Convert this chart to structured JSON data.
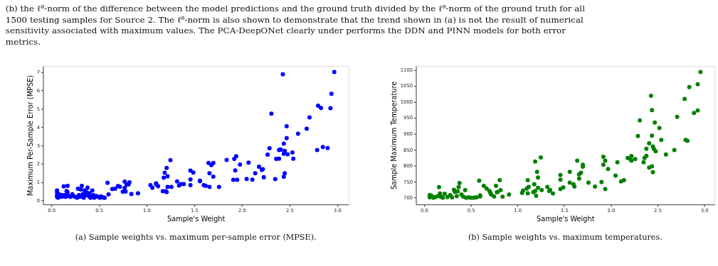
{
  "chart_data": [
    {
      "type": "scatter",
      "xlabel": "Sample's Weight",
      "ylabel": "Maximum Per-Sample Error (MPSE)",
      "annotations": [
        "(b) the ℓ⁸-norm of the difference between the model predictions and the ground truth divided by the ℓ⁸-norm of the ground truth for all",
        "1500 testing samples for Source 2. The ℓ⁸-norm is also shown to demonstrate that the trend shown in (a) is not the result of numerical",
        "sensitivity associated with maximum values. The PCA-DeepONet clearly under performs the DDN and PINN models for both error",
        "metrics.",
        "(a) Sample weights vs. maximum per-sample error (MPSE)."
      ],
      "x": [
        0.06,
        0.06,
        0.06,
        0.06,
        0.07,
        0.08,
        0.1,
        0.11,
        0.12,
        0.13,
        0.14,
        0.15,
        0.16,
        0.17,
        0.17,
        0.18,
        0.2,
        0.22,
        0.23,
        0.25,
        0.27,
        0.28,
        0.29,
        0.3,
        0.31,
        0.32,
        0.33,
        0.34,
        0.35,
        0.36,
        0.37,
        0.38,
        0.39,
        0.4,
        0.41,
        0.42,
        0.43,
        0.44,
        0.45,
        0.47,
        0.49,
        0.51,
        0.52,
        0.53,
        0.55,
        0.56,
        0.59,
        0.6,
        0.64,
        0.67,
        0.7,
        0.72,
        0.75,
        0.77,
        0.77,
        0.78,
        0.79,
        0.81,
        0.82,
        0.84,
        0.91,
        1.04,
        1.06,
        1.1,
        1.1,
        1.12,
        1.17,
        1.18,
        1.19,
        1.2,
        1.21,
        1.21,
        1.22,
        1.22,
        1.25,
        1.26,
        1.32,
        1.34,
        1.36,
        1.39,
        1.46,
        1.46,
        1.46,
        1.49,
        1.56,
        1.56,
        1.6,
        1.62,
        1.65,
        1.66,
        1.66,
        1.68,
        1.7,
        1.7,
        1.76,
        1.84,
        1.91,
        1.92,
        1.93,
        1.94,
        1.95,
        1.98,
        2.05,
        2.07,
        2.11,
        2.14,
        2.18,
        2.21,
        2.22,
        2.23,
        2.27,
        2.29,
        2.31,
        2.35,
        2.36,
        2.39,
        2.39,
        2.4,
        2.41,
        2.43,
        2.44,
        2.44,
        2.44,
        2.45,
        2.45,
        2.47,
        2.47,
        2.48,
        2.53,
        2.54,
        2.59,
        2.68,
        2.71,
        2.79,
        2.8,
        2.83,
        2.85,
        2.9,
        2.93,
        2.94,
        2.97
      ],
      "series": [
        {
          "color": "#0000ff",
          "values": [
            0.55,
            0.45,
            0.3,
            0.2,
            0.15,
            0.35,
            0.2,
            0.3,
            0.22,
            0.77,
            0.3,
            0.2,
            0.52,
            0.8,
            0.45,
            0.25,
            0.2,
            0.35,
            0.25,
            0.2,
            0.15,
            0.65,
            0.3,
            0.2,
            0.6,
            0.8,
            0.35,
            0.15,
            0.55,
            0.3,
            0.45,
            0.7,
            0.25,
            0.4,
            0.15,
            0.2,
            0.55,
            0.3,
            0.15,
            0.25,
            0.2,
            0.15,
            0.22,
            0.2,
            0.15,
            0.15,
            0.97,
            0.34,
            0.63,
            0.65,
            0.79,
            0.75,
            0.48,
            1.03,
            0.69,
            0.49,
            0.87,
            0.88,
            0.99,
            0.36,
            0.4,
            0.84,
            0.7,
            0.89,
            0.94,
            0.78,
            0.51,
            1.25,
            1.52,
            0.51,
            0.46,
            1.78,
            0.74,
            1.32,
            2.2,
            0.74,
            1.04,
            0.82,
            0.9,
            0.9,
            1.63,
            1.15,
            0.84,
            1.53,
            1.05,
            1.08,
            0.84,
            0.8,
            2.05,
            1.49,
            0.74,
            1.93,
            2.05,
            1.3,
            0.74,
            2.21,
            1.13,
            2.27,
            1.64,
            2.41,
            1.13,
            1.96,
            1.18,
            2.07,
            1.14,
            1.49,
            1.84,
            1.67,
            1.71,
            1.27,
            2.5,
            2.85,
            4.73,
            1.17,
            2.27,
            2.28,
            2.75,
            2.77,
            2.77,
            6.88,
            3.1,
            2.55,
            1.29,
            1.49,
            2.7,
            3.4,
            4.05,
            2.52,
            2.62,
            2.28,
            3.64,
            3.91,
            4.53,
            2.75,
            5.17,
            5.04,
            2.92,
            2.86,
            5.03,
            5.81,
            7.0
          ]
        }
      ],
      "xlim": [
        -0.087,
        3.12
      ],
      "xticks": [
        {
          "value": 0,
          "label": "0.0"
        },
        0.5,
        {
          "value": 1,
          "label": "1.0"
        },
        1.5,
        {
          "value": 2,
          "label": "2.0"
        },
        2.5,
        {
          "value": 3,
          "label": "3.0"
        }
      ],
      "ylim": [
        -0.21,
        7.33
      ],
      "yticks": [
        0,
        1,
        2,
        3,
        4,
        5,
        6,
        7
      ],
      "grid": false,
      "legend": false,
      "marker": "circle"
    },
    {
      "type": "scatter",
      "xlabel": "Sample's Weight",
      "ylabel": "Sample Maximum Temperature",
      "annotations": [
        "(b) Sample weights vs. maximum temperatures."
      ],
      "x": [
        0.06,
        0.06,
        0.08,
        0.1,
        0.12,
        0.15,
        0.16,
        0.17,
        0.18,
        0.2,
        0.22,
        0.25,
        0.28,
        0.3,
        0.32,
        0.33,
        0.35,
        0.36,
        0.37,
        0.38,
        0.4,
        0.42,
        0.44,
        0.45,
        0.48,
        0.5,
        0.53,
        0.56,
        0.59,
        0.6,
        0.6,
        0.64,
        0.67,
        0.7,
        0.71,
        0.72,
        0.75,
        0.77,
        0.78,
        0.79,
        0.81,
        0.82,
        0.84,
        0.91,
        1.05,
        1.06,
        1.1,
        1.11,
        1.11,
        1.12,
        1.17,
        1.18,
        1.19,
        1.19,
        1.2,
        1.21,
        1.22,
        1.22,
        1.25,
        1.26,
        1.32,
        1.34,
        1.35,
        1.38,
        1.46,
        1.46,
        1.46,
        1.49,
        1.56,
        1.56,
        1.6,
        1.61,
        1.64,
        1.66,
        1.66,
        1.68,
        1.7,
        1.7,
        1.76,
        1.83,
        1.9,
        1.92,
        1.92,
        1.94,
        1.94,
        1.97,
        2.05,
        2.07,
        2.11,
        2.14,
        2.18,
        2.21,
        2.22,
        2.22,
        2.26,
        2.29,
        2.31,
        2.35,
        2.36,
        2.38,
        2.38,
        2.41,
        2.41,
        2.43,
        2.44,
        2.44,
        2.44,
        2.45,
        2.45,
        2.46,
        2.47,
        2.48,
        2.52,
        2.54,
        2.59,
        2.68,
        2.71,
        2.79,
        2.8,
        2.82,
        2.84,
        2.89,
        2.93,
        2.93,
        2.96
      ],
      "series": [
        {
          "color": "#008000",
          "values": [
            708,
            701,
            706,
            700,
            702,
            705,
            733,
            713,
            703,
            700,
            712,
            702,
            708,
            701,
            725,
            718,
            705,
            720,
            733,
            746,
            710,
            703,
            724,
            700,
            701,
            700,
            700,
            701,
            753,
            704,
            707,
            737,
            729,
            721,
            715,
            710,
            704,
            737,
            717,
            718,
            755,
            724,
            703,
            710,
            715,
            722,
            729,
            755,
            714,
            734,
            717,
            742,
            813,
            721,
            706,
            781,
            731,
            763,
            826,
            724,
            734,
            721,
            724,
            713,
            771,
            727,
            756,
            732,
            781,
            747,
            742,
            735,
            816,
            760,
            773,
            778,
            803,
            797,
            747,
            735,
            749,
            828,
            803,
            816,
            727,
            790,
            769,
            811,
            751,
            755,
            824,
            821,
            830,
            816,
            821,
            893,
            942,
            811,
            824,
            831,
            853,
            870,
            794,
            1019,
            798,
            894,
            974,
            860,
            780,
            853,
            935,
            845,
            918,
            881,
            835,
            849,
            953,
            1009,
            881,
            878,
            1046,
            965,
            1055,
            973,
            1093
          ]
        }
      ],
      "xlim": [
        -0.087,
        3.11
      ],
      "xticks": [
        {
          "value": 0,
          "label": "0.0"
        },
        0.5,
        {
          "value": 1,
          "label": "1.0"
        },
        1.5,
        {
          "value": 2,
          "label": "2.0"
        },
        2.5,
        {
          "value": 3,
          "label": "3.0"
        }
      ],
      "ylim": [
        679,
        1112
      ],
      "yticks": [
        700,
        750,
        800,
        850,
        900,
        950,
        1000,
        1050,
        1100
      ],
      "grid": false,
      "legend": false,
      "marker": "circle"
    }
  ]
}
